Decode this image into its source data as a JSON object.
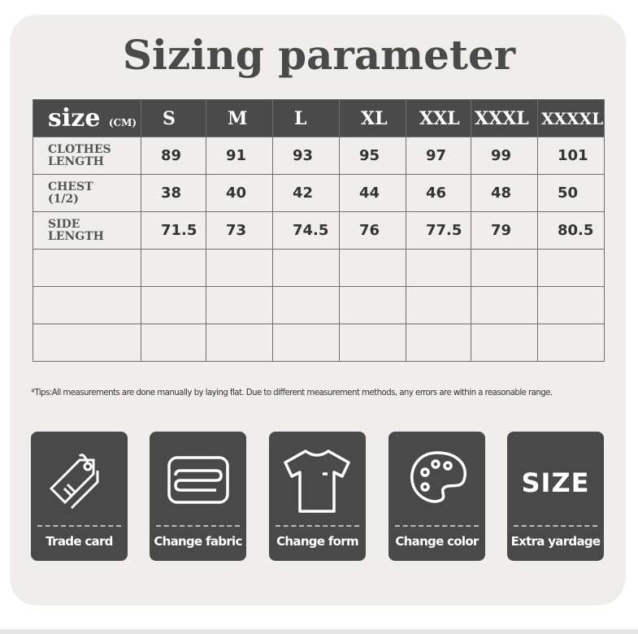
{
  "title": "Sizing parameter",
  "table": {
    "header_label": "size",
    "header_unit": "(CM)",
    "sizes": [
      "S",
      "M",
      "L",
      "XL",
      "XXL",
      "XXXL",
      "XXXXL"
    ],
    "rows": [
      {
        "label1": "CLOTHES",
        "label2": "LENGTH",
        "values": [
          "89",
          "91",
          "93",
          "95",
          "97",
          "99",
          "101"
        ]
      },
      {
        "label1": "CHEST",
        "label2": "(1/2)",
        "values": [
          "38",
          "40",
          "42",
          "44",
          "46",
          "48",
          "50"
        ]
      },
      {
        "label1": "SIDE",
        "label2": "LENGTH",
        "values": [
          "71.5",
          "73",
          "74.5",
          "76",
          "77.5",
          "79",
          "80.5"
        ]
      }
    ]
  },
  "tips": "*Tips:All measurements are done manually by laying flat. Due to different measurement methods, any errors are within a reasonable range.",
  "features": [
    {
      "label": "Trade card",
      "icon": "tag-icon"
    },
    {
      "label": "Change fabric",
      "icon": "fabric-icon"
    },
    {
      "label": "Change form",
      "icon": "tshirt-icon"
    },
    {
      "label": "Change color",
      "icon": "palette-icon"
    },
    {
      "label": "Extra yardage",
      "icon": "size-icon",
      "icon_text": "SIZE"
    }
  ]
}
